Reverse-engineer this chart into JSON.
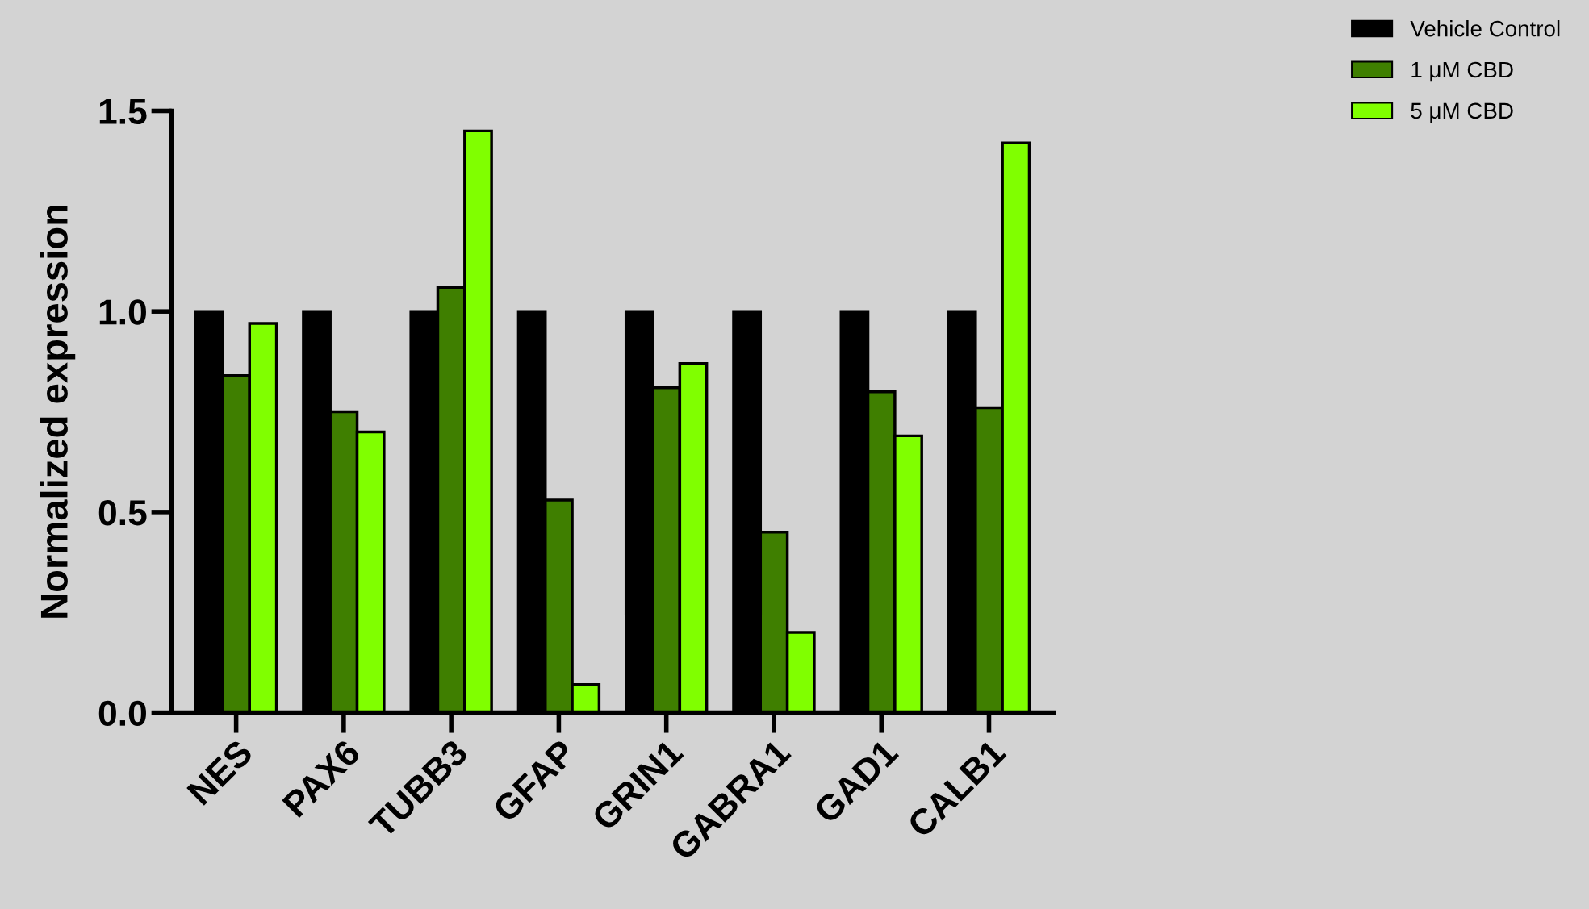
{
  "chart_data": {
    "type": "bar",
    "ylabel": "Normalized expression",
    "categories": [
      "NES",
      "PAX6",
      "TUBB3",
      "GFAP",
      "GRIN1",
      "GABRA1",
      "GAD1",
      "CALB1"
    ],
    "series": [
      {
        "name": "Vehicle Control",
        "color": "#000000",
        "values": [
          1.0,
          1.0,
          1.0,
          1.0,
          1.0,
          1.0,
          1.0,
          1.0
        ]
      },
      {
        "name": "1 μM CBD",
        "color": "#3f7f00",
        "values": [
          0.84,
          0.75,
          1.06,
          0.53,
          0.81,
          0.45,
          0.8,
          0.76
        ]
      },
      {
        "name": "5 μM CBD",
        "color": "#80ff00",
        "values": [
          0.97,
          0.7,
          1.45,
          0.07,
          0.87,
          0.2,
          0.69,
          1.42
        ]
      }
    ],
    "ylim": [
      0,
      1.5
    ],
    "yticks": [
      {
        "value": 0,
        "label": "0.0"
      },
      {
        "value": 0.5,
        "label": "0.5"
      },
      {
        "value": 1,
        "label": "1.0"
      },
      {
        "value": 1.5,
        "label": "1.5"
      }
    ],
    "grid": false,
    "legend": "top right"
  }
}
